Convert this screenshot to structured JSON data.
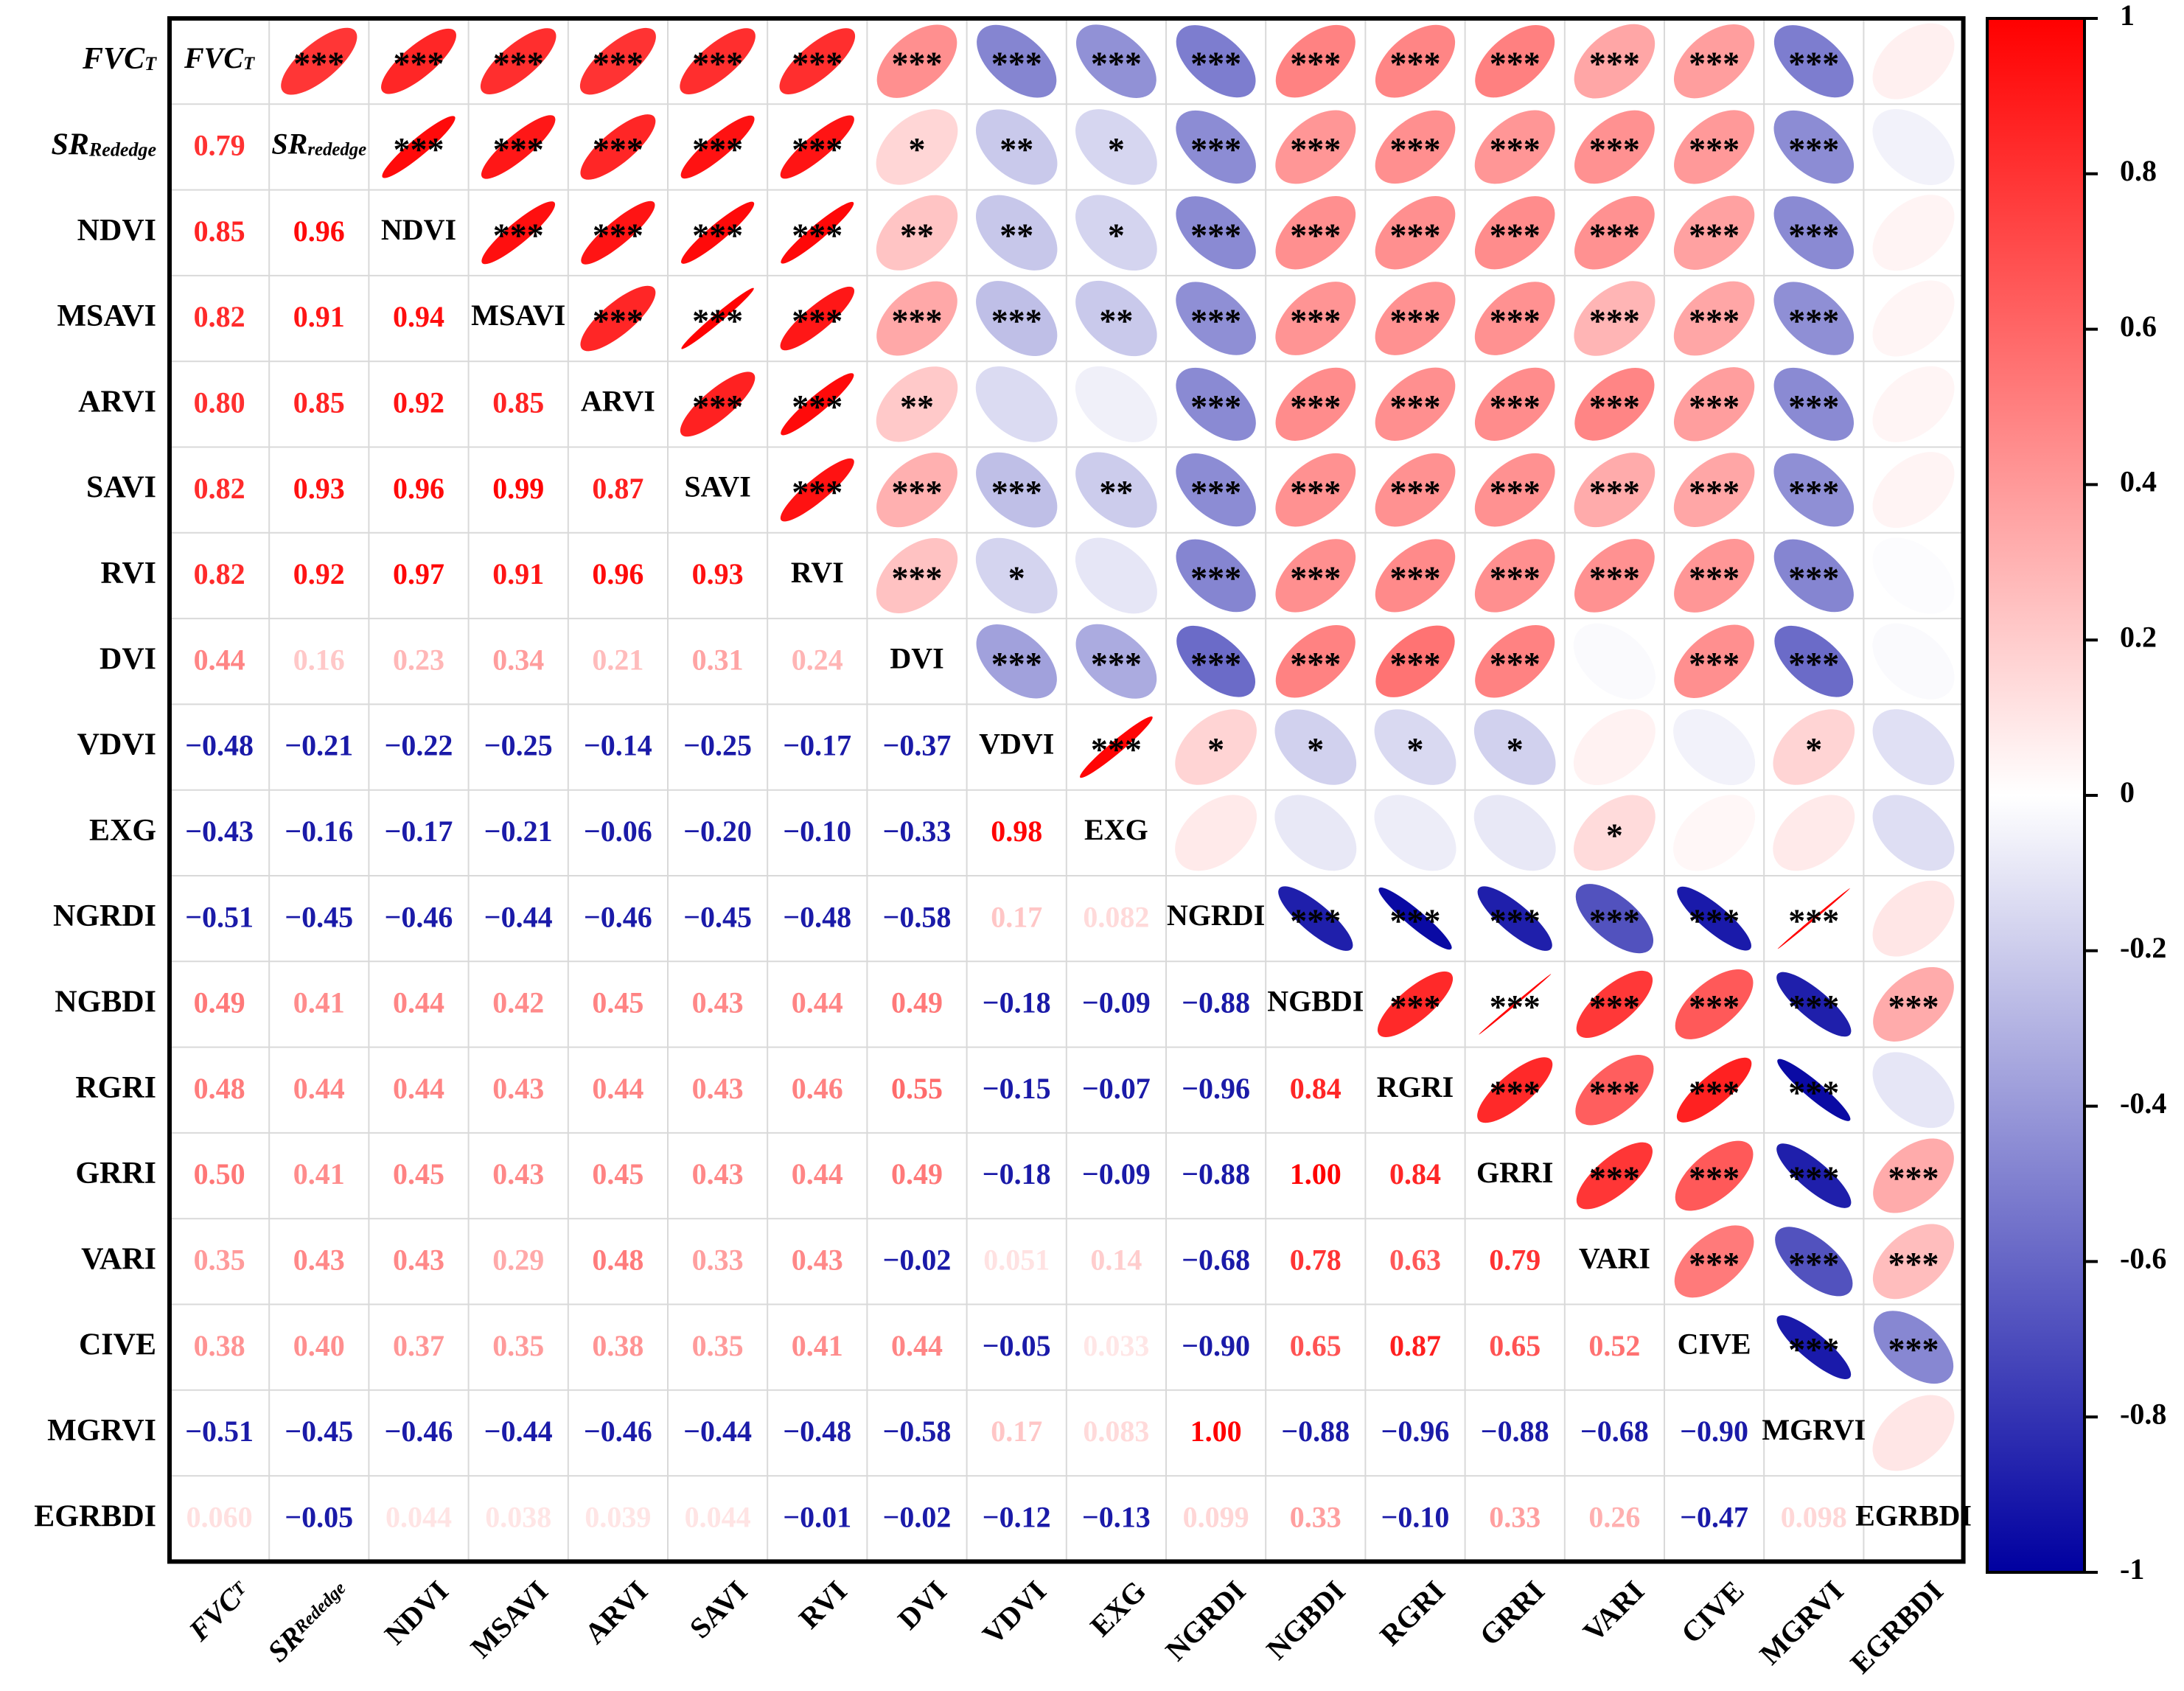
{
  "chart_data": {
    "type": "heatmap",
    "title": "",
    "variables": [
      {
        "main": "FVC",
        "sub": "T",
        "italic": true
      },
      {
        "main": "SR",
        "sub": "Rededge",
        "diag_sub": "rededge",
        "italic": true
      },
      {
        "main": "NDVI"
      },
      {
        "main": "MSAVI"
      },
      {
        "main": "ARVI"
      },
      {
        "main": "SAVI"
      },
      {
        "main": "RVI"
      },
      {
        "main": "DVI"
      },
      {
        "main": "VDVI"
      },
      {
        "main": "EXG"
      },
      {
        "main": "NGRDI"
      },
      {
        "main": "NGBDI"
      },
      {
        "main": "RGRI"
      },
      {
        "main": "GRRI"
      },
      {
        "main": "VARI"
      },
      {
        "main": "CIVE"
      },
      {
        "main": "MGRVI"
      },
      {
        "main": "EGRBDI"
      }
    ],
    "lower_labels": [
      [],
      [
        "0.79"
      ],
      [
        "0.85",
        "0.96"
      ],
      [
        "0.82",
        "0.91",
        "0.94"
      ],
      [
        "0.80",
        "0.85",
        "0.92",
        "0.85"
      ],
      [
        "0.82",
        "0.93",
        "0.96",
        "0.99",
        "0.87"
      ],
      [
        "0.82",
        "0.92",
        "0.97",
        "0.91",
        "0.96",
        "0.93"
      ],
      [
        "0.44",
        "0.16",
        "0.23",
        "0.34",
        "0.21",
        "0.31",
        "0.24"
      ],
      [
        "−0.48",
        "−0.21",
        "−0.22",
        "−0.25",
        "−0.14",
        "−0.25",
        "−0.17",
        "−0.37"
      ],
      [
        "−0.43",
        "−0.16",
        "−0.17",
        "−0.21",
        "−0.06",
        "−0.20",
        "−0.10",
        "−0.33",
        "0.98"
      ],
      [
        "−0.51",
        "−0.45",
        "−0.46",
        "−0.44",
        "−0.46",
        "−0.45",
        "−0.48",
        "−0.58",
        "0.17",
        "0.082"
      ],
      [
        "0.49",
        "0.41",
        "0.44",
        "0.42",
        "0.45",
        "0.43",
        "0.44",
        "0.49",
        "−0.18",
        "−0.09",
        "−0.88"
      ],
      [
        "0.48",
        "0.44",
        "0.44",
        "0.43",
        "0.44",
        "0.43",
        "0.46",
        "0.55",
        "−0.15",
        "−0.07",
        "−0.96",
        "0.84"
      ],
      [
        "0.50",
        "0.41",
        "0.45",
        "0.43",
        "0.45",
        "0.43",
        "0.44",
        "0.49",
        "−0.18",
        "−0.09",
        "−0.88",
        "1.00",
        "0.84"
      ],
      [
        "0.35",
        "0.43",
        "0.43",
        "0.29",
        "0.48",
        "0.33",
        "0.43",
        "−0.02",
        "0.051",
        "0.14",
        "−0.68",
        "0.78",
        "0.63",
        "0.79"
      ],
      [
        "0.38",
        "0.40",
        "0.37",
        "0.35",
        "0.38",
        "0.35",
        "0.41",
        "0.44",
        "−0.05",
        "0.033",
        "−0.90",
        "0.65",
        "0.87",
        "0.65",
        "0.52"
      ],
      [
        "−0.51",
        "−0.45",
        "−0.46",
        "−0.44",
        "−0.46",
        "−0.44",
        "−0.48",
        "−0.58",
        "0.17",
        "0.083",
        "1.00",
        "−0.88",
        "−0.96",
        "−0.88",
        "−0.68",
        "−0.90"
      ],
      [
        "0.060",
        "−0.05",
        "0.044",
        "0.038",
        "0.039",
        "0.044",
        "−0.01",
        "−0.02",
        "−0.12",
        "−0.13",
        "0.099",
        "0.33",
        "−0.10",
        "0.33",
        "0.26",
        "−0.47",
        "0.098"
      ]
    ],
    "significance": {
      "0": [
        "",
        "***",
        "***",
        "***",
        "***",
        "***",
        "***",
        "***",
        "***",
        "***",
        "***",
        "***",
        "***",
        "***",
        "***",
        "***",
        "***",
        ""
      ],
      "1": [
        "",
        "",
        "***",
        "***",
        "***",
        "***",
        "***",
        "*",
        "**",
        "*",
        "***",
        "***",
        "***",
        "***",
        "***",
        "***",
        "***",
        ""
      ],
      "2": [
        "",
        "",
        "",
        "***",
        "***",
        "***",
        "***",
        "**",
        "**",
        "*",
        "***",
        "***",
        "***",
        "***",
        "***",
        "***",
        "***",
        ""
      ],
      "3": [
        "",
        "",
        "",
        "",
        "***",
        "***",
        "***",
        "***",
        "***",
        "**",
        "***",
        "***",
        "***",
        "***",
        "***",
        "***",
        "***",
        ""
      ],
      "4": [
        "",
        "",
        "",
        "",
        "",
        "***",
        "***",
        "**",
        "",
        "",
        "***",
        "***",
        "***",
        "***",
        "***",
        "***",
        "***",
        ""
      ],
      "5": [
        "",
        "",
        "",
        "",
        "",
        "",
        "***",
        "***",
        "***",
        "**",
        "***",
        "***",
        "***",
        "***",
        "***",
        "***",
        "***",
        ""
      ],
      "6": [
        "",
        "",
        "",
        "",
        "",
        "",
        "",
        "***",
        "*",
        "",
        "***",
        "***",
        "***",
        "***",
        "***",
        "***",
        "***",
        ""
      ],
      "7": [
        "",
        "",
        "",
        "",
        "",
        "",
        "",
        "",
        "***",
        "***",
        "***",
        "***",
        "***",
        "***",
        "",
        "***",
        "***",
        ""
      ],
      "8": [
        "",
        "",
        "",
        "",
        "",
        "",
        "",
        "",
        "",
        "***",
        "*",
        "*",
        "*",
        "*",
        "",
        "",
        "*",
        ""
      ],
      "9": [
        "",
        "",
        "",
        "",
        "",
        "",
        "",
        "",
        "",
        "",
        "",
        "",
        "",
        "",
        "*",
        "",
        "",
        ""
      ],
      "10": [
        "",
        "",
        "",
        "",
        "",
        "",
        "",
        "",
        "",
        "",
        "",
        "***",
        "***",
        "***",
        "***",
        "***",
        "***",
        ""
      ],
      "11": [
        "",
        "",
        "",
        "",
        "",
        "",
        "",
        "",
        "",
        "",
        "",
        "",
        "***",
        "***",
        "***",
        "***",
        "***",
        "***"
      ],
      "12": [
        "",
        "",
        "",
        "",
        "",
        "",
        "",
        "",
        "",
        "",
        "",
        "",
        "",
        "***",
        "***",
        "***",
        "***",
        ""
      ],
      "13": [
        "",
        "",
        "",
        "",
        "",
        "",
        "",
        "",
        "",
        "",
        "",
        "",
        "",
        "",
        "***",
        "***",
        "***",
        "***"
      ],
      "14": [
        "",
        "",
        "",
        "",
        "",
        "",
        "",
        "",
        "",
        "",
        "",
        "",
        "",
        "",
        "",
        "***",
        "***",
        "***"
      ],
      "15": [
        "",
        "",
        "",
        "",
        "",
        "",
        "",
        "",
        "",
        "",
        "",
        "",
        "",
        "",
        "",
        "",
        "***",
        "***"
      ],
      "16": [
        "",
        "",
        "",
        "",
        "",
        "",
        "",
        "",
        "",
        "",
        "",
        "",
        "",
        "",
        "",
        "",
        "",
        ""
      ]
    },
    "colorbar": {
      "range": [
        -1,
        1
      ],
      "ticks": [
        "1",
        "0.8",
        "0.6",
        "0.4",
        "0.2",
        "0",
        "-0.2",
        "-0.4",
        "-0.6",
        "-0.8",
        "-1"
      ],
      "colors": {
        "low": "#0000a0",
        "mid": "#ffffff",
        "high": "#ff0000",
        "neg_text": "#1a1aa8",
        "pos_text": "#ff0000"
      }
    }
  }
}
